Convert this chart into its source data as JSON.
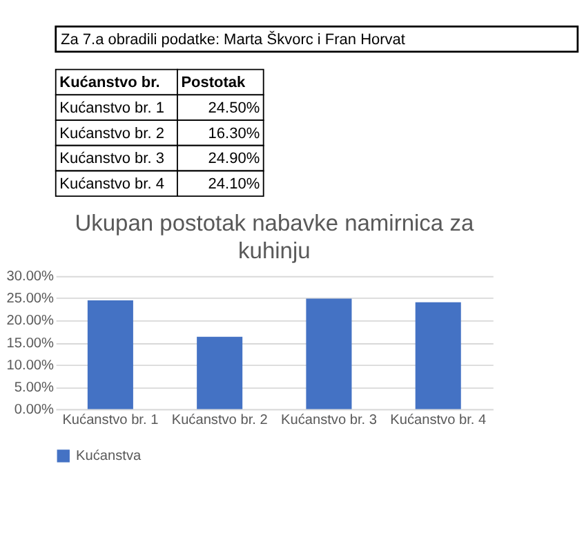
{
  "chart_data": {
    "type": "bar",
    "title": "Ukupan postotak nabavke namirnica za kuhinju",
    "annotations": [
      "Za 7.a obradili podatke: Marta Škvorc i Fran Horvat",
      "Kućanstvo br.",
      "Postotak",
      "Kućanstvo br. 1",
      "24.50%",
      "Kućanstvo br. 2",
      "16.30%",
      "Kućanstvo br. 3",
      "24.90%",
      "Kućanstvo br. 4",
      "24.10%"
    ],
    "categories": [
      "Kućanstvo br. 1",
      "Kućanstvo br. 2",
      "Kućanstvo br. 3",
      "Kućanstvo br. 4"
    ],
    "series": [
      {
        "name": "Kućanstva",
        "color": "#4472c4",
        "values": [
          24.5,
          16.3,
          24.9,
          24.1
        ]
      }
    ],
    "ylim": [
      0,
      30
    ],
    "yticks": [
      {
        "value": 0,
        "label": "0.00%"
      },
      {
        "value": 5,
        "label": "5.00%"
      },
      {
        "value": 10,
        "label": "10.00%"
      },
      {
        "value": 15,
        "label": "15.00%"
      },
      {
        "value": 20,
        "label": "20.00%"
      },
      {
        "value": 25,
        "label": "25.00%"
      },
      {
        "value": 30,
        "label": "30.00%"
      }
    ],
    "grid": "y",
    "legend": "bottom"
  }
}
